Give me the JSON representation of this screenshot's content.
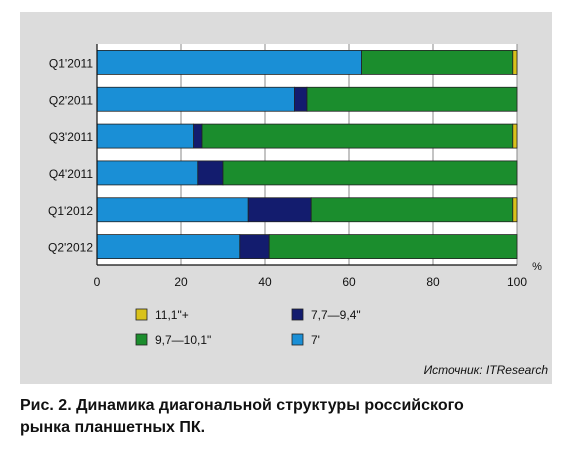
{
  "chart_data": {
    "type": "bar",
    "orientation": "horizontal",
    "stacked": true,
    "categories": [
      "Q1'2011",
      "Q2'2011",
      "Q3'2011",
      "Q4'2011",
      "Q1'2012",
      "Q2'2012"
    ],
    "series": [
      {
        "name": "7'",
        "color": "#1a8fd6",
        "values": [
          63,
          47,
          23,
          24,
          36,
          34
        ]
      },
      {
        "name": "7,7—9,4\"",
        "color": "#131c6e",
        "values": [
          0,
          3,
          2,
          6,
          15,
          7
        ]
      },
      {
        "name": "9,7—10,1\"",
        "color": "#1b8d2d",
        "values": [
          36,
          50,
          74,
          70,
          48,
          59
        ]
      },
      {
        "name": "11,1\"+",
        "color": "#d9c21b",
        "values": [
          1,
          0,
          1,
          0,
          1,
          0
        ]
      }
    ],
    "legend_order": [
      3,
      1,
      2,
      0
    ],
    "x_ticks": [
      0,
      20,
      40,
      60,
      80,
      100
    ],
    "xlim": [
      0,
      100
    ],
    "x_unit": "%",
    "grid": true,
    "legend_position": "bottom",
    "source": "Источник: ITResearch"
  },
  "caption": {
    "line1": "Рис. 2. Динамика диагональной структуры российского",
    "line2": "рынка планшетных ПК."
  }
}
